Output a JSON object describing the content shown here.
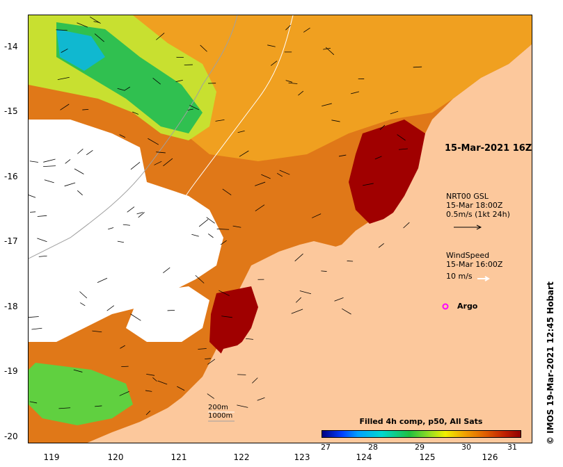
{
  "title_timestamp": "15-Mar-2021 16Z",
  "current_legend": {
    "line1": "NRT00 GSL",
    "line2": "15-Mar 18:00Z",
    "line3": "0.5m/s (1kt 24h)"
  },
  "wind_legend": {
    "line1": "WindSpeed",
    "line2": "15-Mar 16:00Z",
    "line3": "10 m/s"
  },
  "argo": {
    "label": "Argo",
    "color": "#ff00ff"
  },
  "credit": "© IMOS 19-Mar-2021 12:45 Hobart",
  "colorbar": {
    "title": "Filled 4h comp, p50, All Sats",
    "labels": [
      "27",
      "28",
      "29",
      "30",
      "31"
    ]
  },
  "depth_legend": {
    "line1": "200m",
    "line2": "1000m"
  },
  "axes": {
    "x_ticks": [
      "119",
      "120",
      "121",
      "122",
      "123",
      "124",
      "125",
      "126"
    ],
    "y_ticks": [
      "-14",
      "-15",
      "-16",
      "-17",
      "-18",
      "-19",
      "-20"
    ]
  },
  "colors": {
    "land": "#fcc89c",
    "sst_hot": "#a00000",
    "sst_warm": "#e08010",
    "sst_cool": "#20c040"
  }
}
